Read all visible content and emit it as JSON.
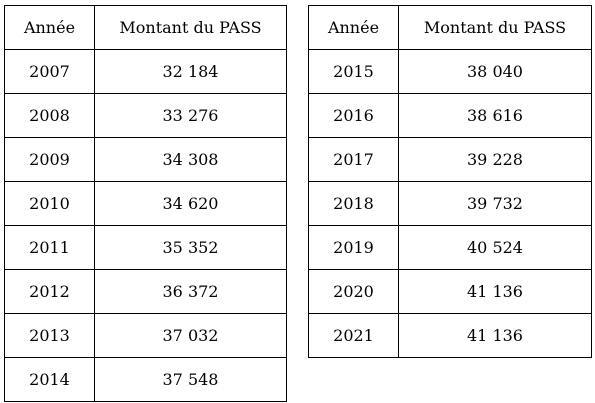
{
  "left_table": {
    "headers": [
      "Année",
      "Montant du PASS"
    ],
    "rows": [
      [
        "2007",
        "32 184"
      ],
      [
        "2008",
        "33 276"
      ],
      [
        "2009",
        "34 308"
      ],
      [
        "2010",
        "34 620"
      ],
      [
        "2011",
        "35 352"
      ],
      [
        "2012",
        "36 372"
      ],
      [
        "2013",
        "37 032"
      ],
      [
        "2014",
        "37 548"
      ]
    ]
  },
  "right_table": {
    "headers": [
      "Année",
      "Montant du PASS"
    ],
    "rows": [
      [
        "2015",
        "38 040"
      ],
      [
        "2016",
        "38 616"
      ],
      [
        "2017",
        "39 228"
      ],
      [
        "2018",
        "39 732"
      ],
      [
        "2019",
        "40 524"
      ],
      [
        "2020",
        "41 136"
      ],
      [
        "2021",
        "41 136"
      ]
    ]
  }
}
